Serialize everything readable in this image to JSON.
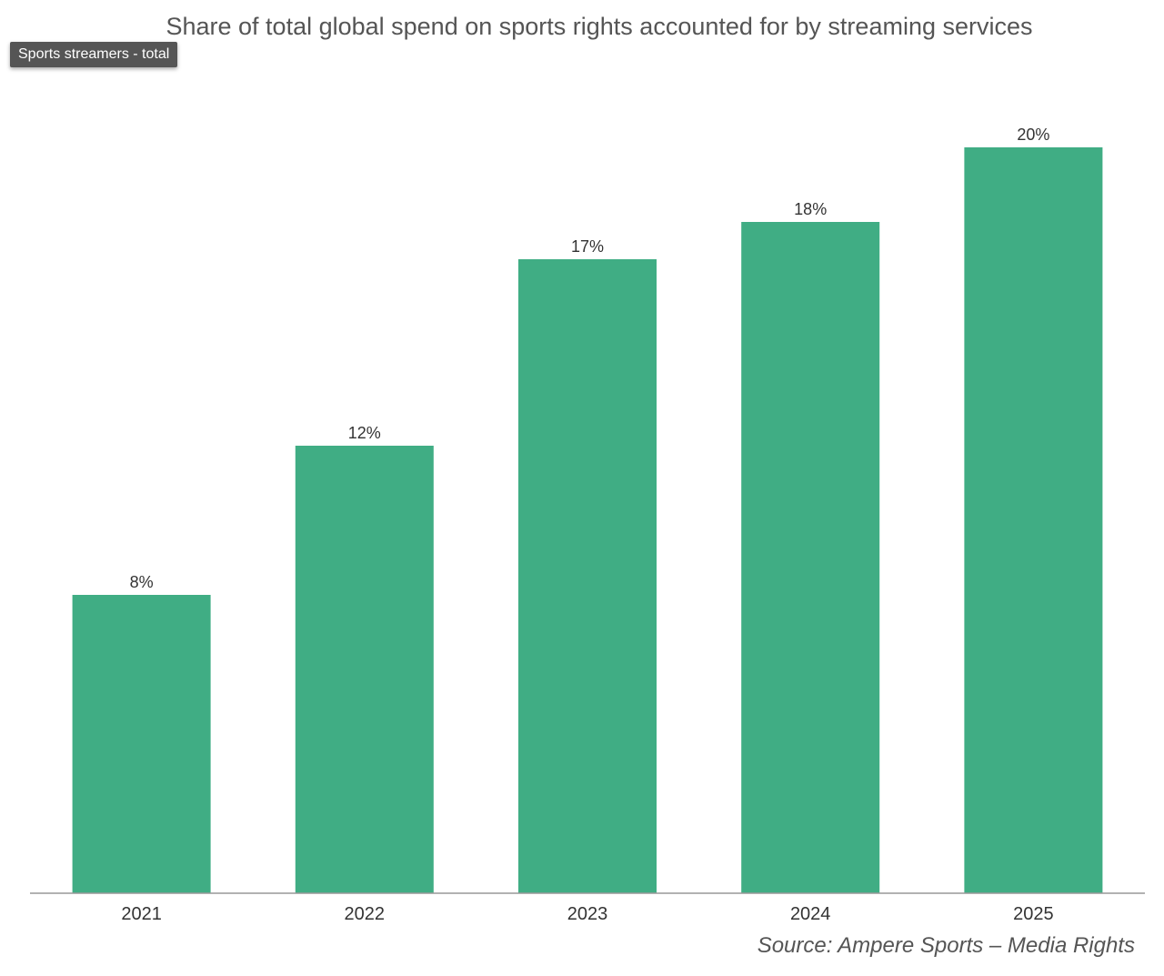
{
  "chart_data": {
    "type": "bar",
    "title": "Share of total global spend on sports rights accounted for by streaming services",
    "categories": [
      "2021",
      "2022",
      "2023",
      "2024",
      "2025"
    ],
    "series": [
      {
        "name": "Sports streamers - total",
        "values": [
          8,
          12,
          17,
          18,
          20
        ],
        "data_labels": [
          "8%",
          "12%",
          "17%",
          "18%",
          "20%"
        ],
        "color": "#40ad84"
      }
    ],
    "ylim": [
      0,
      20
    ],
    "grid": false,
    "legend": "top-left",
    "source": "Source: Ampere Sports – Media Rights"
  },
  "colors": {
    "bar": "#40ad84",
    "axis": "#999999",
    "text": "#333333",
    "muted": "#555555"
  }
}
